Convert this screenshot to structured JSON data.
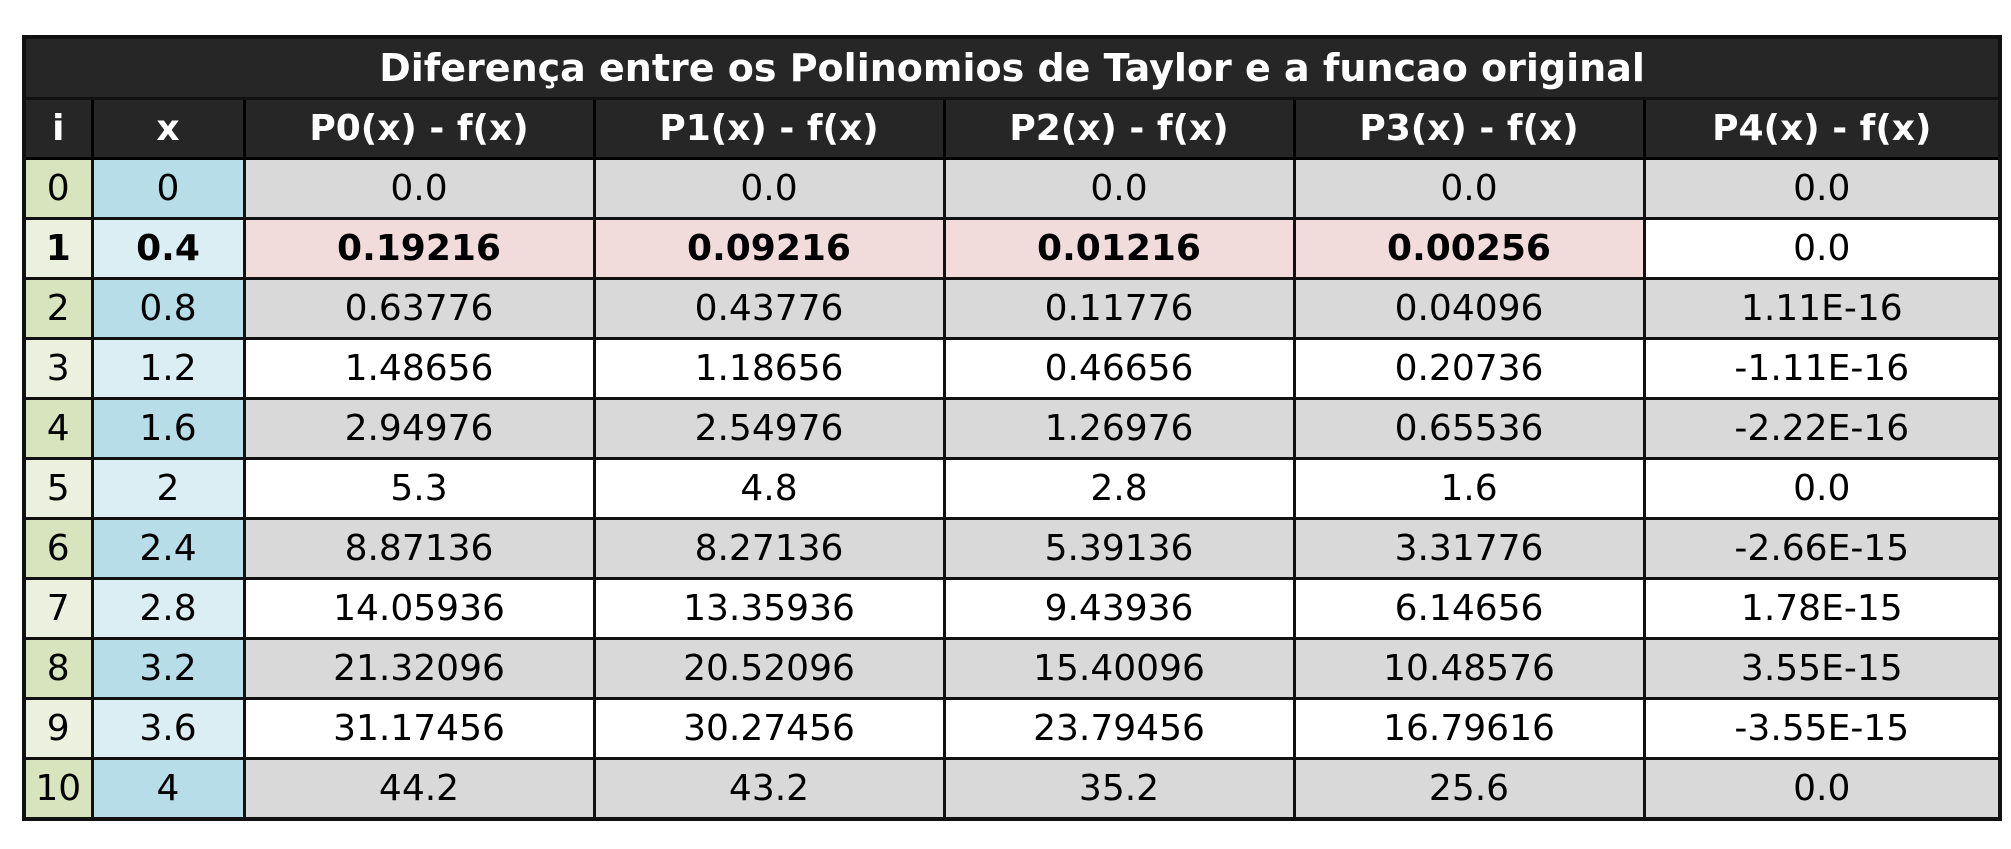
{
  "title": "Diferença entre os Polinomios de Taylor e a funcao original",
  "columns": [
    "i",
    "x",
    "P0(x) - f(x)",
    "P1(x) - f(x)",
    "P2(x) - f(x)",
    "P3(x) - f(x)",
    "P4(x) - f(x)"
  ],
  "rows": [
    {
      "i": "0",
      "x": "0",
      "p0": "0.0",
      "p1": "0.0",
      "p2": "0.0",
      "p3": "0.0",
      "p4": "0.0"
    },
    {
      "i": "1",
      "x": "0.4",
      "p0": "0.19216",
      "p1": "0.09216",
      "p2": "0.01216",
      "p3": "0.00256",
      "p4": "0.0"
    },
    {
      "i": "2",
      "x": "0.8",
      "p0": "0.63776",
      "p1": "0.43776",
      "p2": "0.11776",
      "p3": "0.04096",
      "p4": "1.11E-16"
    },
    {
      "i": "3",
      "x": "1.2",
      "p0": "1.48656",
      "p1": "1.18656",
      "p2": "0.46656",
      "p3": "0.20736",
      "p4": "-1.11E-16"
    },
    {
      "i": "4",
      "x": "1.6",
      "p0": "2.94976",
      "p1": "2.54976",
      "p2": "1.26976",
      "p3": "0.65536",
      "p4": "-2.22E-16"
    },
    {
      "i": "5",
      "x": "2",
      "p0": "5.3",
      "p1": "4.8",
      "p2": "2.8",
      "p3": "1.6",
      "p4": "0.0"
    },
    {
      "i": "6",
      "x": "2.4",
      "p0": "8.87136",
      "p1": "8.27136",
      "p2": "5.39136",
      "p3": "3.31776",
      "p4": "-2.66E-15"
    },
    {
      "i": "7",
      "x": "2.8",
      "p0": "14.05936",
      "p1": "13.35936",
      "p2": "9.43936",
      "p3": "6.14656",
      "p4": "1.78E-15"
    },
    {
      "i": "8",
      "x": "3.2",
      "p0": "21.32096",
      "p1": "20.52096",
      "p2": "15.40096",
      "p3": "10.48576",
      "p4": "3.55E-15"
    },
    {
      "i": "9",
      "x": "3.6",
      "p0": "31.17456",
      "p1": "30.27456",
      "p2": "23.79456",
      "p3": "16.79616",
      "p4": "-3.55E-15"
    },
    {
      "i": "10",
      "x": "4",
      "p0": "44.2",
      "p1": "43.2",
      "p2": "35.2",
      "p3": "25.6",
      "p4": "0.0"
    }
  ],
  "colors": {
    "header_bg": "#262626",
    "header_text": "#ffffff",
    "i_col_dark": "#d7e4bd",
    "i_col_light": "#ebf1de",
    "x_col_dark": "#b7dde8",
    "x_col_light": "#dbeef3",
    "row_gray": "#d9d9d9",
    "row_white": "#ffffff",
    "highlight_row": "#f2dcdb"
  }
}
